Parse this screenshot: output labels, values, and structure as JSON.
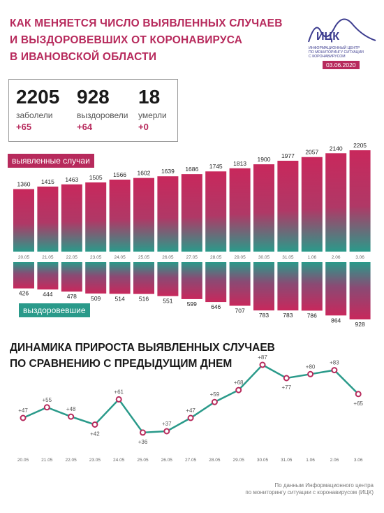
{
  "header": {
    "title": "Как меняется число выявленных случаев\nи выздоровевших от коронавируса\nв Ивановской области",
    "logo_name": "ИЦК",
    "logo_subtitle": "ИНФОРМАЦИОННЫЙ ЦЕНТР\nПО МОНИТОРИНГУ СИТУАЦИИ\nС КОРОНАВИРУСОМ",
    "date": "03.06.2020"
  },
  "stats": {
    "confirmed": {
      "value": "2205",
      "label": "заболели",
      "delta": "+65"
    },
    "recovered": {
      "value": "928",
      "label": "выздоровели",
      "delta": "+64"
    },
    "deaths": {
      "value": "18",
      "label": "умерли",
      "delta": "+0"
    }
  },
  "labels": {
    "confirmed_tag": "выявленные случаи",
    "recovered_tag": "выздоровевшие",
    "dynamics_title": "Динамика прироста выявленных случаев\nпо сравнению с предыдущим днем",
    "footer": "По данным Информационного центра\nпо мониторингу ситуации с коронавирусом (ИЦК)"
  },
  "colors": {
    "accent": "#b72a5c",
    "teal": "#2a9a8a",
    "logo": "#3d3d8f"
  },
  "icons": {
    "logo": "wave-logo-icon"
  },
  "chart_data": [
    {
      "type": "bar",
      "categories": [
        "20.05",
        "21.05",
        "22.05",
        "23.05",
        "24.05",
        "25.05",
        "26.05",
        "27.05",
        "28.05",
        "29.05",
        "30.05",
        "31.05",
        "1.06",
        "2.06",
        "3.06"
      ],
      "series": [
        {
          "name": "выявленные случаи",
          "values": [
            1360,
            1415,
            1463,
            1505,
            1566,
            1602,
            1639,
            1686,
            1745,
            1813,
            1900,
            1977,
            2057,
            2140,
            2205
          ]
        },
        {
          "name": "выздоровевшие",
          "values": [
            426,
            444,
            478,
            509,
            514,
            516,
            551,
            599,
            646,
            707,
            783,
            783,
            786,
            864,
            928
          ]
        }
      ]
    },
    {
      "type": "line",
      "categories": [
        "20.05",
        "21.05",
        "22.05",
        "23.05",
        "24.05",
        "25.05",
        "26.05",
        "27.05",
        "28.05",
        "29.05",
        "30.05",
        "31.05",
        "1.06",
        "2.06",
        "3.06"
      ],
      "values": [
        47,
        55,
        48,
        42,
        61,
        36,
        37,
        47,
        59,
        68,
        87,
        77,
        80,
        83,
        65
      ],
      "value_labels": [
        "+47",
        "+55",
        "+48",
        "+42",
        "+61",
        "+36",
        "+37",
        "+47",
        "+59",
        "+68",
        "+87",
        "+77",
        "+80",
        "+83",
        "+65"
      ]
    }
  ]
}
